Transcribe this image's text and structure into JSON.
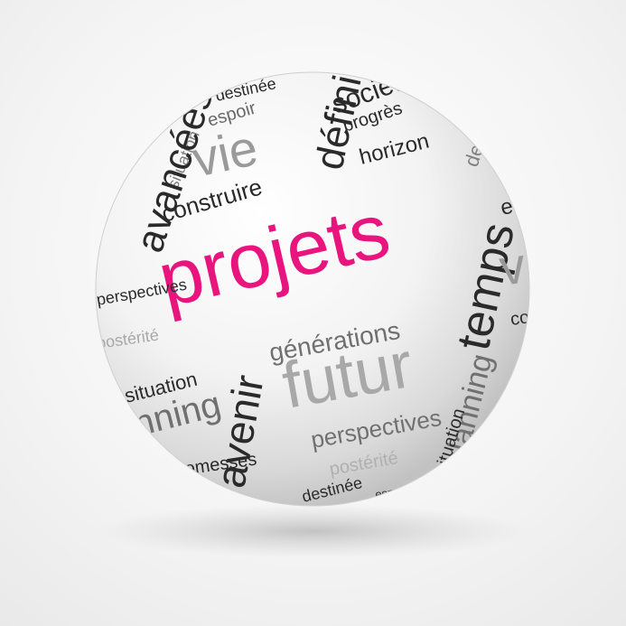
{
  "colors": {
    "accent": "#e8157f",
    "dark": "#2a2a2a",
    "mid": "#707070",
    "light": "#a8a8a8"
  },
  "words": {
    "destinee_top": "destinée",
    "espoir": "espoir",
    "definir": "définir",
    "societe": "société",
    "progres": "progrès",
    "situation_top": "situation",
    "vie_left": "vie",
    "horizon": "horizon",
    "destinee_right": "destinée",
    "avancees": "avancées",
    "construire": "construire",
    "projets": "projets",
    "temps": "temps",
    "espoir_right": "espoir",
    "futur_left": "futur",
    "perspectives_left": "perspectives",
    "generations": "générations",
    "vie_right": "vie",
    "posterite_left": "postérité",
    "construire_right": "construire",
    "avenir": "avenir",
    "situation_mid": "situation",
    "futur_main": "futur",
    "planning_left": "planning",
    "perspectives_main": "perspectives",
    "planning_right": "planning",
    "situation_right": "situation",
    "posterite_main": "postérité",
    "promesses": "promesses",
    "destinee_bottom": "destinée",
    "espoir_bottom": "espoir",
    "objectifs": "objectifs"
  }
}
